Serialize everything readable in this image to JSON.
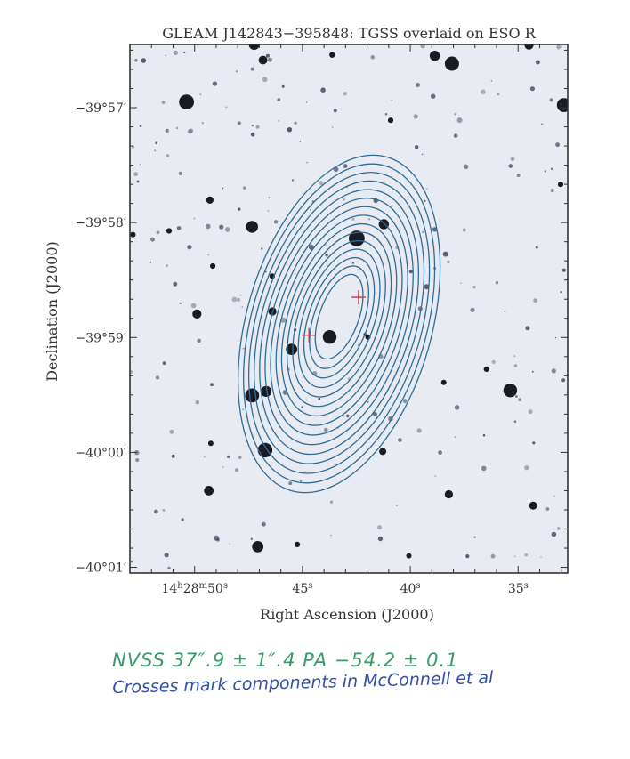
{
  "chart_data": {
    "type": "contour",
    "title": "GLEAM J142843−395848: TGSS overlaid on ESO R",
    "xlabel": "Right Ascension (J2000)",
    "ylabel": "Declination (J2000)",
    "x_ticks": [
      {
        "ra_s": 50,
        "main": "14",
        "sup1": "h",
        "mid": "28",
        "sup2": "m",
        "tail": "50",
        "sup3": "s"
      },
      {
        "ra_s": 45,
        "main": "45",
        "sup3": "s"
      },
      {
        "ra_s": 40,
        "main": "40",
        "sup3": "s"
      },
      {
        "ra_s": 35,
        "main": "35",
        "sup3": "s"
      }
    ],
    "y_ticks": [
      {
        "dec_arcmin": -57,
        "label": "−39°57′"
      },
      {
        "dec_arcmin": -58,
        "label": "−39°58′"
      },
      {
        "dec_arcmin": -59,
        "label": "−39°59′"
      },
      {
        "dec_arcmin": -60,
        "label": "−40°00′"
      },
      {
        "dec_arcmin": -61,
        "label": "−40°01′"
      }
    ],
    "xlim_ra_seconds": [
      53.0,
      32.7
    ],
    "ylim_dec_arcmin_offset": [
      -61.05,
      -56.45
    ],
    "contour_center": {
      "ra_s": 43.3,
      "dec_arcmin": -58.82
    },
    "contour_levels": 15,
    "contour_color": "#2e6d96",
    "component_crosses": [
      {
        "ra_s": 42.4,
        "dec_arcmin": -58.65
      },
      {
        "ra_s": 44.7,
        "dec_arcmin": -58.98
      }
    ],
    "cross_color": "#c0394a",
    "background_color": "#e9ebf3"
  },
  "annotations": {
    "nvss": "NVSS   37″.9 ± 1″.4     PA −54.2 ± 0.1",
    "crosses": "Crosses mark components in McConnell et al"
  }
}
